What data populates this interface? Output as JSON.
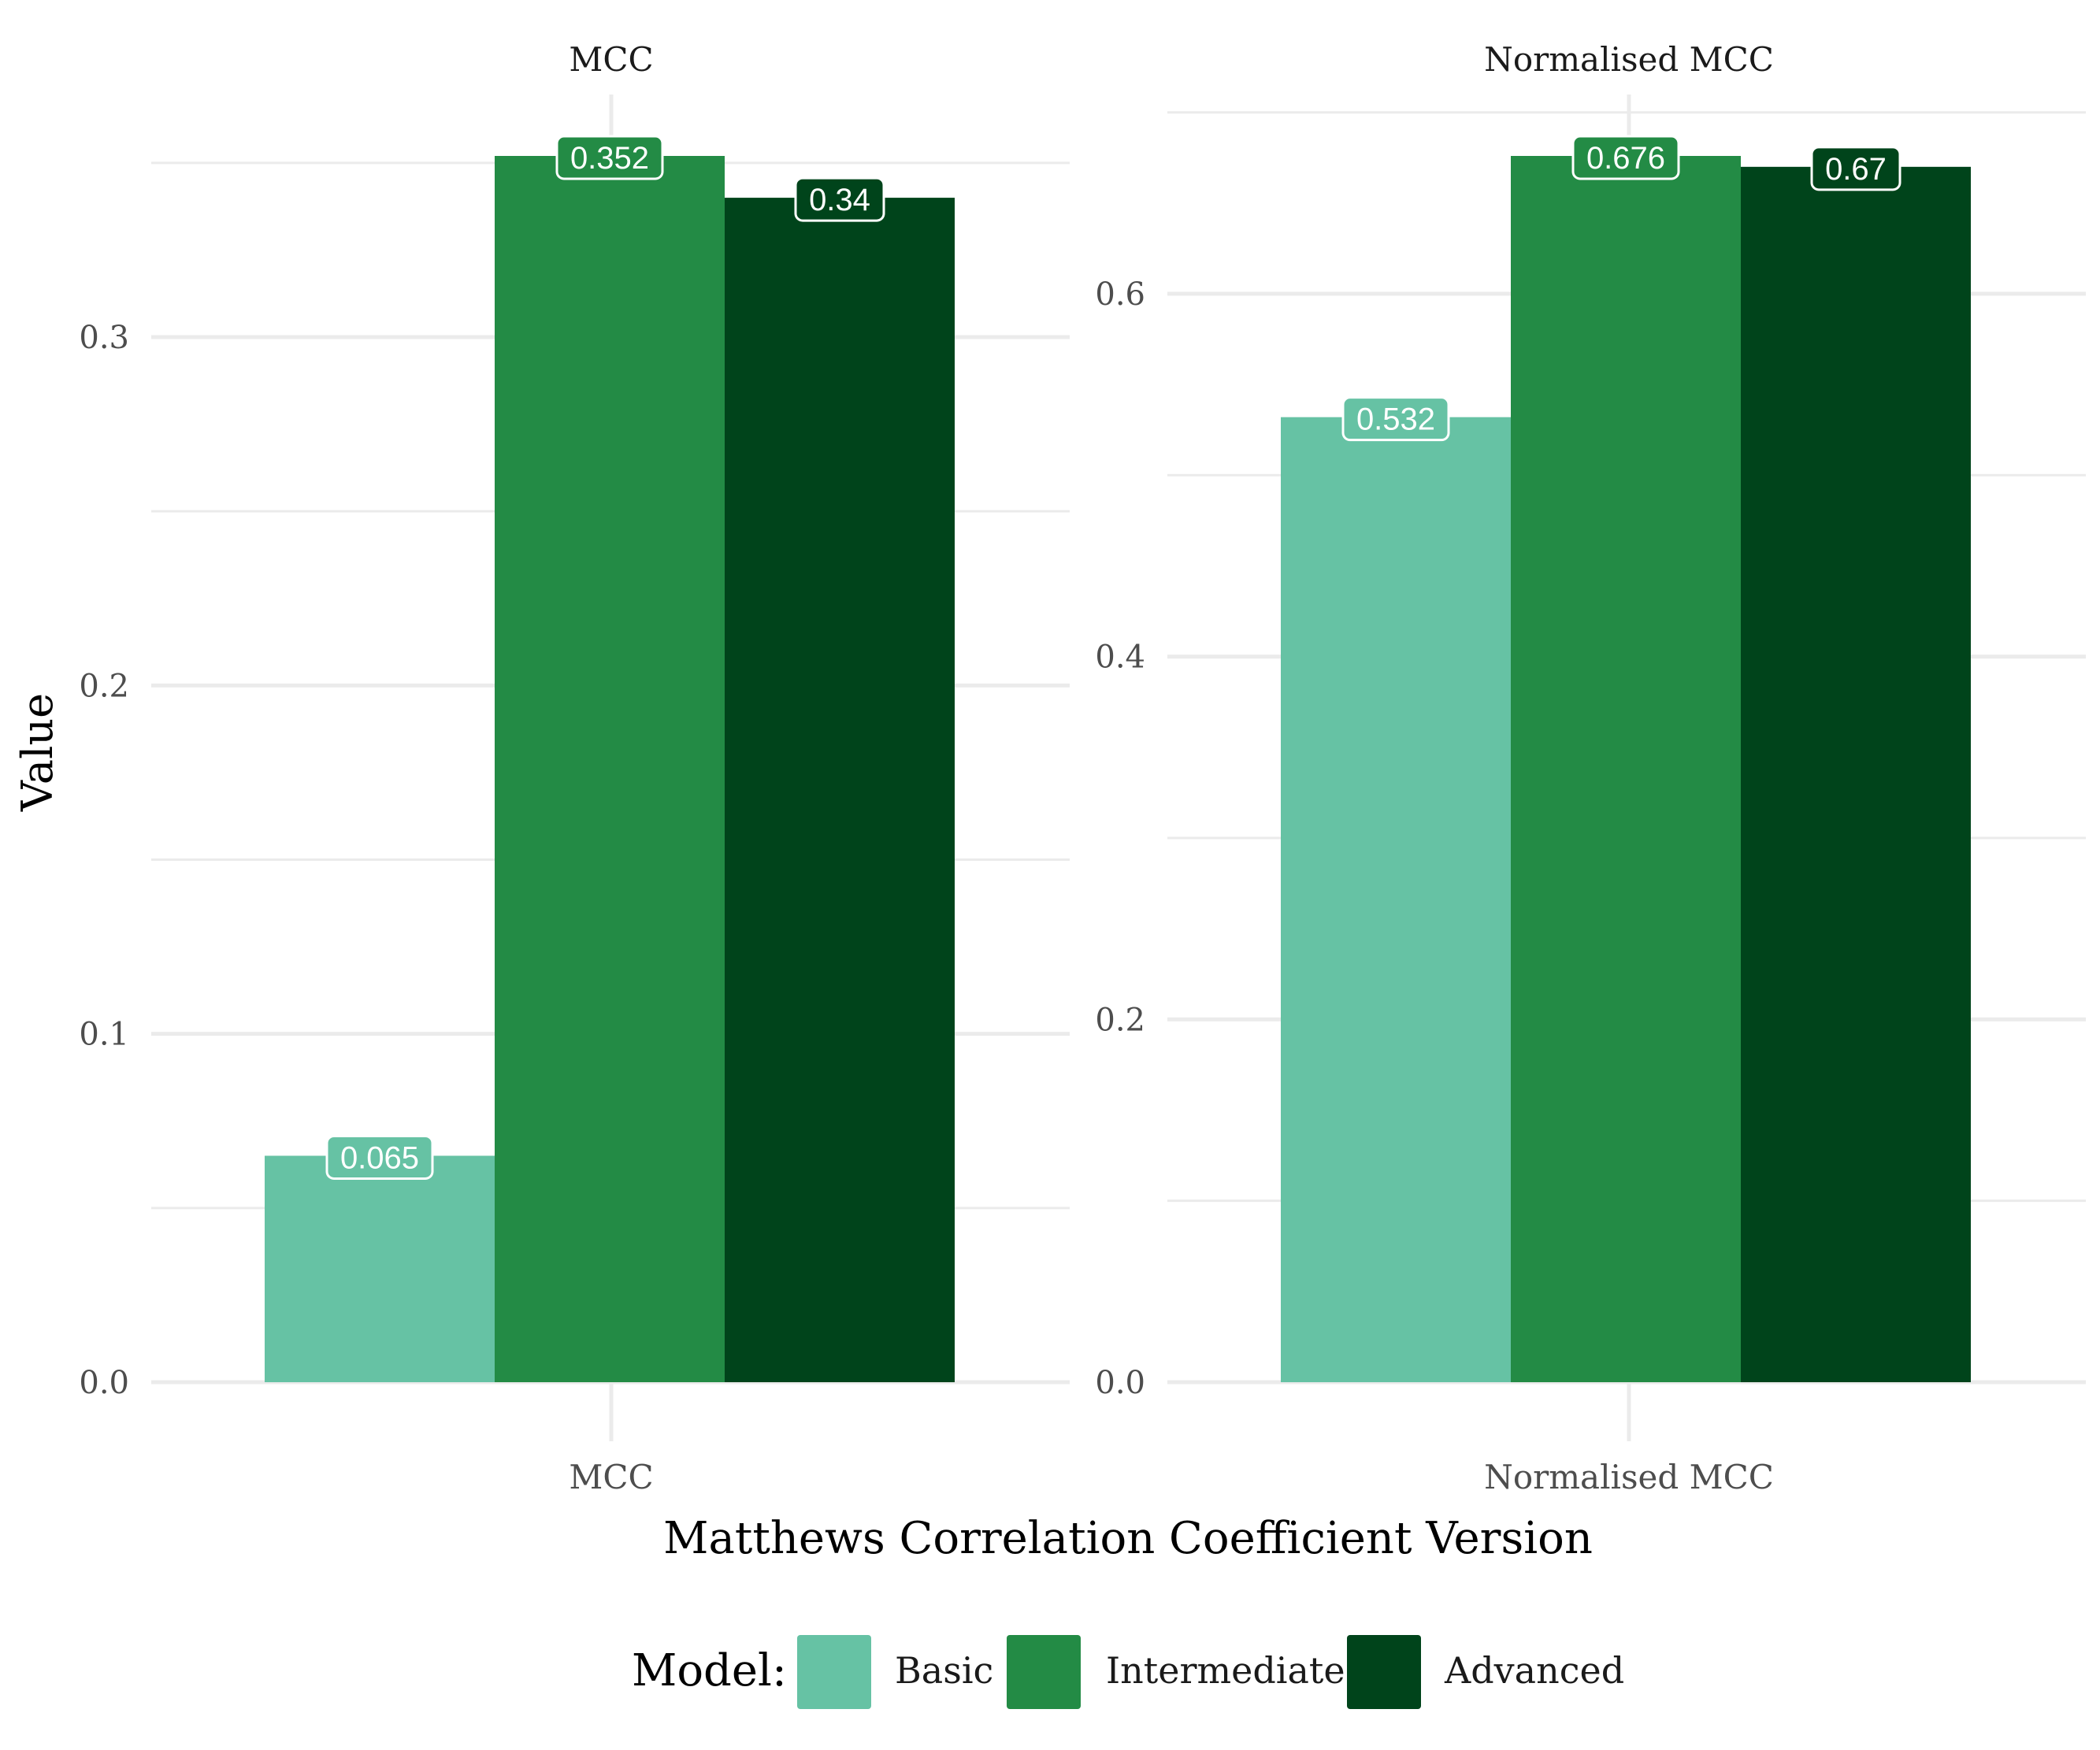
{
  "chart_data": [
    {
      "type": "bar",
      "title": "MCC",
      "categories": [
        "MCC"
      ],
      "series": [
        {
          "name": "Basic",
          "values": [
            0.065
          ]
        },
        {
          "name": "Intermediate",
          "values": [
            0.352
          ]
        },
        {
          "name": "Advanced",
          "values": [
            0.34
          ]
        }
      ],
      "data_labels": [
        "0.065",
        "0.352",
        "0.34"
      ],
      "ylim": [
        0,
        0.352
      ],
      "y_ticks": [
        0.0,
        0.1,
        0.2,
        0.3
      ],
      "y_tick_labels": [
        "0.0",
        "0.1",
        "0.2",
        "0.3"
      ],
      "grid": true
    },
    {
      "type": "bar",
      "title": "Normalised MCC",
      "categories": [
        "Normalised MCC"
      ],
      "series": [
        {
          "name": "Basic",
          "values": [
            0.532
          ]
        },
        {
          "name": "Intermediate",
          "values": [
            0.676
          ]
        },
        {
          "name": "Advanced",
          "values": [
            0.67
          ]
        }
      ],
      "data_labels": [
        "0.532",
        "0.676",
        "0.67"
      ],
      "ylim": [
        0,
        0.676
      ],
      "y_ticks": [
        0.0,
        0.2,
        0.4,
        0.6
      ],
      "y_tick_labels": [
        "0.0",
        "0.2",
        "0.4",
        "0.6"
      ],
      "grid": true
    }
  ],
  "axes": {
    "xlabel": "Matthews Correlation Coefficient Version",
    "ylabel": "Value"
  },
  "legend": {
    "title": "Model:",
    "placement": "bottom",
    "items": [
      {
        "label": "Basic",
        "color": "#66c2a4"
      },
      {
        "label": "Intermediate",
        "color": "#238b45"
      },
      {
        "label": "Advanced",
        "color": "#00441b"
      }
    ]
  },
  "colors": {
    "gridline": "#ebebeb",
    "label_text": "#ffffff",
    "axis_text": "#4d4d4d"
  }
}
